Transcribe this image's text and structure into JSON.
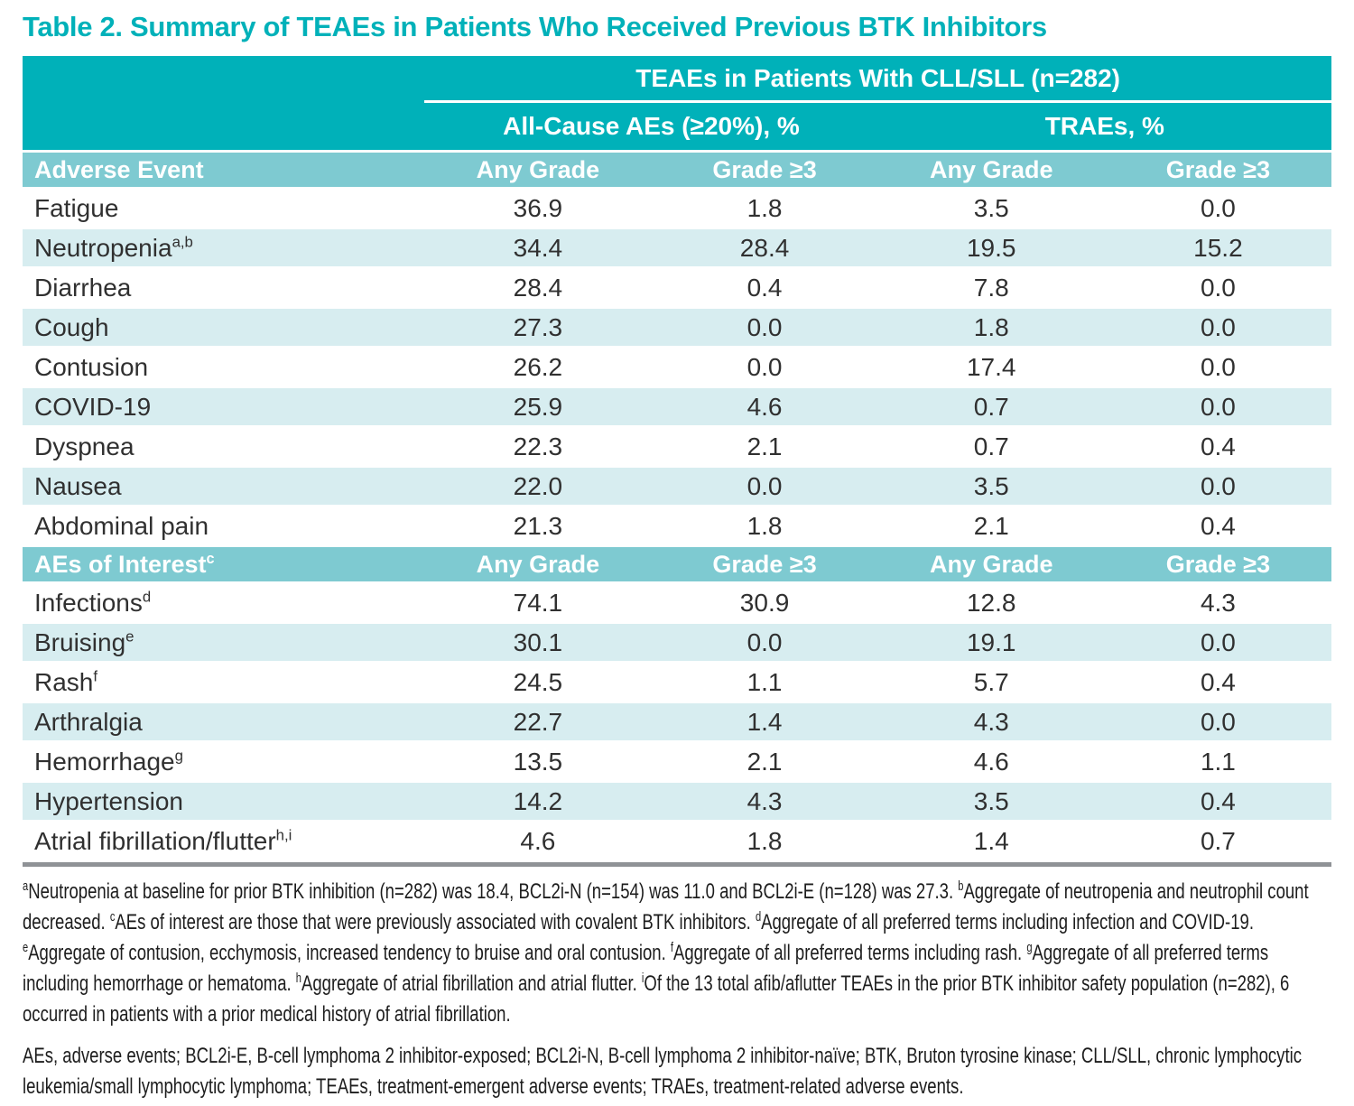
{
  "title": "Table 2. Summary of TEAEs in Patients Who Received Previous BTK Inhibitors",
  "colors": {
    "teal_dark": "#00b1b9",
    "teal_medium": "#7ecad1",
    "row_tint": "#d7edf0",
    "bottom_border_gray": "#8f9296",
    "ink": "#303030"
  },
  "table": {
    "group_header": "TEAEs in Patients With CLL/SLL (n=282)",
    "subgroup_headers": [
      "All-Cause AEs (≥20%), %",
      "TRAEs, %"
    ],
    "column_headers": [
      "Any Grade",
      "Grade ≥3",
      "Any Grade",
      "Grade ≥3"
    ],
    "sections": [
      {
        "label": "Adverse Event",
        "label_sup": "",
        "rows": [
          {
            "event": "Fatigue",
            "sup": "",
            "values": [
              "36.9",
              "1.8",
              "3.5",
              "0.0"
            ]
          },
          {
            "event": "Neutropenia",
            "sup": "a,b",
            "values": [
              "34.4",
              "28.4",
              "19.5",
              "15.2"
            ]
          },
          {
            "event": "Diarrhea",
            "sup": "",
            "values": [
              "28.4",
              "0.4",
              "7.8",
              "0.0"
            ]
          },
          {
            "event": "Cough",
            "sup": "",
            "values": [
              "27.3",
              "0.0",
              "1.8",
              "0.0"
            ]
          },
          {
            "event": "Contusion",
            "sup": "",
            "values": [
              "26.2",
              "0.0",
              "17.4",
              "0.0"
            ]
          },
          {
            "event": "COVID-19",
            "sup": "",
            "values": [
              "25.9",
              "4.6",
              "0.7",
              "0.0"
            ]
          },
          {
            "event": "Dyspnea",
            "sup": "",
            "values": [
              "22.3",
              "2.1",
              "0.7",
              "0.4"
            ]
          },
          {
            "event": "Nausea",
            "sup": "",
            "values": [
              "22.0",
              "0.0",
              "3.5",
              "0.0"
            ]
          },
          {
            "event": "Abdominal pain",
            "sup": "",
            "values": [
              "21.3",
              "1.8",
              "2.1",
              "0.4"
            ]
          }
        ]
      },
      {
        "label": "AEs of Interest",
        "label_sup": "c",
        "rows": [
          {
            "event": "Infections",
            "sup": "d",
            "values": [
              "74.1",
              "30.9",
              "12.8",
              "4.3"
            ]
          },
          {
            "event": "Bruising",
            "sup": "e",
            "values": [
              "30.1",
              "0.0",
              "19.1",
              "0.0"
            ]
          },
          {
            "event": "Rash",
            "sup": "f",
            "values": [
              "24.5",
              "1.1",
              "5.7",
              "0.4"
            ]
          },
          {
            "event": "Arthralgia",
            "sup": "",
            "values": [
              "22.7",
              "1.4",
              "4.3",
              "0.0"
            ]
          },
          {
            "event": "Hemorrhage",
            "sup": "g",
            "values": [
              "13.5",
              "2.1",
              "4.6",
              "1.1"
            ]
          },
          {
            "event": "Hypertension",
            "sup": "",
            "values": [
              "14.2",
              "4.3",
              "3.5",
              "0.4"
            ]
          },
          {
            "event": "Atrial fibrillation/flutter",
            "sup": "h,i",
            "values": [
              "4.6",
              "1.8",
              "1.4",
              "0.7"
            ]
          }
        ]
      }
    ]
  },
  "footnotes": [
    {
      "sup": "a",
      "text": "Neutropenia at baseline for prior BTK inhibition (n=282) was 18.4, BCL2i-N (n=154) was 11.0 and BCL2i-E (n=128) was 27.3."
    },
    {
      "sup": "b",
      "text": "Aggregate of neutropenia and neutrophil count decreased."
    },
    {
      "sup": "c",
      "text": "AEs of interest are those that were previously associated with covalent BTK inhibitors."
    },
    {
      "sup": "d",
      "text": "Aggregate of all preferred terms including infection and COVID-19."
    },
    {
      "sup": "e",
      "text": "Aggregate of contusion, ecchymosis, increased tendency to bruise and oral contusion."
    },
    {
      "sup": "f",
      "text": "Aggregate of all preferred terms including rash."
    },
    {
      "sup": "g",
      "text": "Aggregate of all preferred terms including hemorrhage or hematoma."
    },
    {
      "sup": "h",
      "text": "Aggregate of atrial fibrillation and atrial flutter."
    },
    {
      "sup": "i",
      "text": "Of the 13 total afib/aflutter TEAEs in the prior BTK inhibitor safety population (n=282), 6 occurred in patients with a prior medical history of atrial fibrillation."
    }
  ],
  "abbreviations": "AEs, adverse events; BCL2i-E, B-cell lymphoma 2 inhibitor-exposed; BCL2i-N, B-cell lymphoma 2 inhibitor-naïve; BTK, Bruton tyrosine kinase; CLL/SLL, chronic lymphocytic leukemia/small lymphocytic lymphoma; TEAEs, treatment-emergent adverse events; TRAEs, treatment-related adverse events."
}
